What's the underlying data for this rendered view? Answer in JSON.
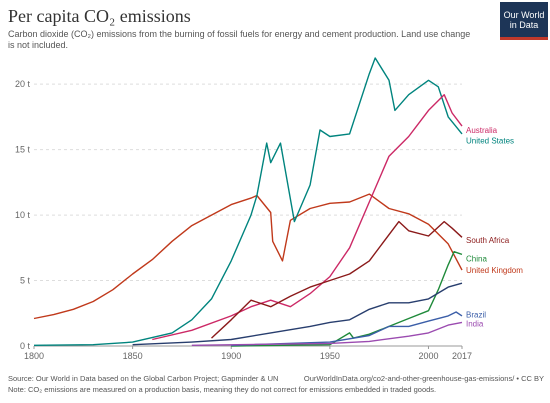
{
  "header": {
    "title": "Per capita CO₂ emissions",
    "subtitle": "Carbon dioxide (CO₂) emissions from the burning of fossil fuels for energy and cement production. Land use change is not included."
  },
  "logo": {
    "line1": "Our World",
    "line2": "in Data",
    "colors": {
      "bg": "#1d3557",
      "accent": "#c0392b"
    }
  },
  "footer": {
    "source": "Source: Our World in Data based on the Global Carbon Project; Gapminder & UN",
    "url": "OurWorldInData.org/co2-and-other-greenhouse-gas-emissions/ • CC BY",
    "note": "Note: CO₂ emissions are measured on a production basis, meaning they do not correct for emissions embedded in traded goods."
  },
  "chart_data": {
    "type": "line",
    "xlim": [
      1800,
      2017
    ],
    "ylim": [
      0,
      22
    ],
    "x_ticks": [
      1800,
      1850,
      1900,
      1950,
      2000,
      2017
    ],
    "y_ticks": [
      {
        "v": 0,
        "label": "0 t"
      },
      {
        "v": 5,
        "label": "5 t"
      },
      {
        "v": 10,
        "label": "10 t"
      },
      {
        "v": 15,
        "label": "15 t"
      },
      {
        "v": 20,
        "label": "20 t"
      }
    ],
    "grid": true,
    "series": [
      {
        "name": "United Kingdom",
        "color": "#c0391b",
        "points": [
          [
            1800,
            2.1
          ],
          [
            1810,
            2.4
          ],
          [
            1820,
            2.8
          ],
          [
            1830,
            3.4
          ],
          [
            1840,
            4.3
          ],
          [
            1850,
            5.5
          ],
          [
            1860,
            6.6
          ],
          [
            1870,
            8.0
          ],
          [
            1880,
            9.2
          ],
          [
            1890,
            10.0
          ],
          [
            1900,
            10.8
          ],
          [
            1910,
            11.3
          ],
          [
            1913,
            11.5
          ],
          [
            1920,
            10.2
          ],
          [
            1921,
            8.0
          ],
          [
            1926,
            6.5
          ],
          [
            1930,
            9.6
          ],
          [
            1940,
            10.5
          ],
          [
            1950,
            10.9
          ],
          [
            1960,
            11.0
          ],
          [
            1970,
            11.6
          ],
          [
            1980,
            10.5
          ],
          [
            1990,
            10.1
          ],
          [
            2000,
            9.3
          ],
          [
            2010,
            7.8
          ],
          [
            2017,
            5.8
          ]
        ]
      },
      {
        "name": "United States",
        "color": "#00847e",
        "points": [
          [
            1800,
            0.05
          ],
          [
            1830,
            0.1
          ],
          [
            1850,
            0.3
          ],
          [
            1870,
            1.0
          ],
          [
            1880,
            2.0
          ],
          [
            1890,
            3.6
          ],
          [
            1900,
            6.5
          ],
          [
            1910,
            10.0
          ],
          [
            1913,
            11.5
          ],
          [
            1918,
            15.5
          ],
          [
            1920,
            14.0
          ],
          [
            1925,
            15.5
          ],
          [
            1932,
            9.5
          ],
          [
            1940,
            12.3
          ],
          [
            1945,
            16.5
          ],
          [
            1950,
            16.0
          ],
          [
            1960,
            16.2
          ],
          [
            1970,
            20.8
          ],
          [
            1973,
            22.0
          ],
          [
            1980,
            20.3
          ],
          [
            1983,
            18.0
          ],
          [
            1990,
            19.2
          ],
          [
            2000,
            20.3
          ],
          [
            2005,
            19.8
          ],
          [
            2010,
            17.5
          ],
          [
            2017,
            16.2
          ]
        ]
      },
      {
        "name": "Australia",
        "color": "#cc2966",
        "points": [
          [
            1860,
            0.5
          ],
          [
            1880,
            1.2
          ],
          [
            1900,
            2.3
          ],
          [
            1910,
            3.0
          ],
          [
            1920,
            3.5
          ],
          [
            1930,
            3.0
          ],
          [
            1940,
            4.0
          ],
          [
            1950,
            5.3
          ],
          [
            1960,
            7.5
          ],
          [
            1970,
            11.0
          ],
          [
            1980,
            14.5
          ],
          [
            1990,
            16.0
          ],
          [
            2000,
            18.0
          ],
          [
            2008,
            19.2
          ],
          [
            2012,
            17.8
          ],
          [
            2017,
            16.8
          ]
        ]
      },
      {
        "name": "South Africa",
        "color": "#8b1a1a",
        "points": [
          [
            1890,
            0.6
          ],
          [
            1900,
            2.0
          ],
          [
            1910,
            3.5
          ],
          [
            1920,
            3.0
          ],
          [
            1930,
            3.8
          ],
          [
            1940,
            4.5
          ],
          [
            1950,
            5.0
          ],
          [
            1960,
            5.5
          ],
          [
            1970,
            6.5
          ],
          [
            1980,
            8.5
          ],
          [
            1985,
            9.5
          ],
          [
            1990,
            8.8
          ],
          [
            2000,
            8.4
          ],
          [
            2008,
            9.5
          ],
          [
            2012,
            9.0
          ],
          [
            2017,
            8.3
          ]
        ]
      },
      {
        "name": "China",
        "color": "#1f8a3a",
        "points": [
          [
            1900,
            0.0
          ],
          [
            1950,
            0.1
          ],
          [
            1960,
            1.0
          ],
          [
            1962,
            0.6
          ],
          [
            1970,
            0.9
          ],
          [
            1980,
            1.5
          ],
          [
            1990,
            2.1
          ],
          [
            2000,
            2.7
          ],
          [
            2005,
            4.3
          ],
          [
            2010,
            6.2
          ],
          [
            2013,
            7.2
          ],
          [
            2017,
            7.0
          ]
        ]
      },
      {
        "name": "",
        "color": "#283e6e",
        "points": [
          [
            1850,
            0.1
          ],
          [
            1880,
            0.3
          ],
          [
            1900,
            0.5
          ],
          [
            1920,
            1.0
          ],
          [
            1940,
            1.5
          ],
          [
            1950,
            1.8
          ],
          [
            1960,
            2.0
          ],
          [
            1970,
            2.8
          ],
          [
            1980,
            3.3
          ],
          [
            1990,
            3.3
          ],
          [
            2000,
            3.6
          ],
          [
            2010,
            4.5
          ],
          [
            2017,
            4.8
          ]
        ]
      },
      {
        "name": "Brazil",
        "color": "#3b5ea8",
        "points": [
          [
            1900,
            0.05
          ],
          [
            1950,
            0.3
          ],
          [
            1970,
            0.8
          ],
          [
            1980,
            1.5
          ],
          [
            1990,
            1.5
          ],
          [
            2000,
            1.9
          ],
          [
            2010,
            2.3
          ],
          [
            2014,
            2.6
          ],
          [
            2017,
            2.3
          ]
        ]
      },
      {
        "name": "India",
        "color": "#9b4bb0",
        "points": [
          [
            1880,
            0.05
          ],
          [
            1950,
            0.2
          ],
          [
            1970,
            0.35
          ],
          [
            1990,
            0.75
          ],
          [
            2000,
            1.0
          ],
          [
            2010,
            1.6
          ],
          [
            2017,
            1.8
          ]
        ]
      }
    ],
    "labels": [
      {
        "text": "Australia",
        "y": 16.5,
        "color": "#cc2966"
      },
      {
        "text": "United States",
        "y": 15.7,
        "color": "#00847e"
      },
      {
        "text": "South Africa",
        "y": 8.1,
        "color": "#8b1a1a"
      },
      {
        "text": "China",
        "y": 6.7,
        "color": "#1f8a3a"
      },
      {
        "text": "United Kingdom",
        "y": 5.8,
        "color": "#c0391b"
      },
      {
        "text": "Brazil",
        "y": 2.4,
        "color": "#3b5ea8"
      },
      {
        "text": "India",
        "y": 1.7,
        "color": "#9b4bb0"
      }
    ]
  }
}
